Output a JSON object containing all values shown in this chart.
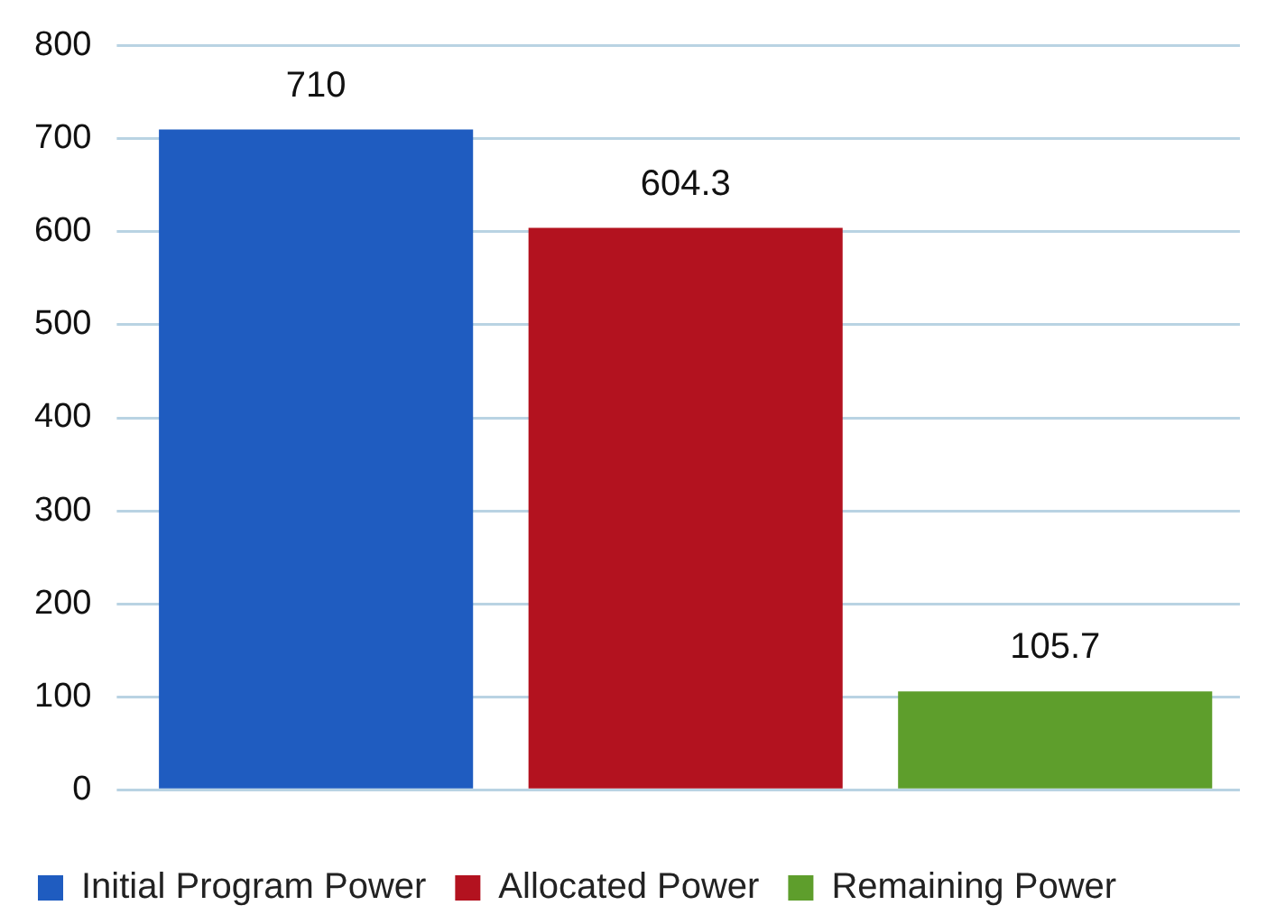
{
  "chart_data": {
    "type": "bar",
    "categories": [
      null,
      null,
      null
    ],
    "series": [
      {
        "name": "Initial Program Power",
        "color": "#1f5cc0",
        "values": [
          710,
          null,
          null
        ]
      },
      {
        "name": "Allocated Power",
        "color": "#b3121f",
        "values": [
          null,
          604.3,
          null
        ]
      },
      {
        "name": "Remaining Power",
        "color": "#5e9e2c",
        "values": [
          null,
          null,
          105.7
        ]
      }
    ],
    "ylim": [
      0,
      800
    ],
    "yticks": [
      0,
      100,
      200,
      300,
      400,
      500,
      600,
      700,
      800
    ],
    "grid": "y",
    "legend": "bottom",
    "data_labels": true
  }
}
